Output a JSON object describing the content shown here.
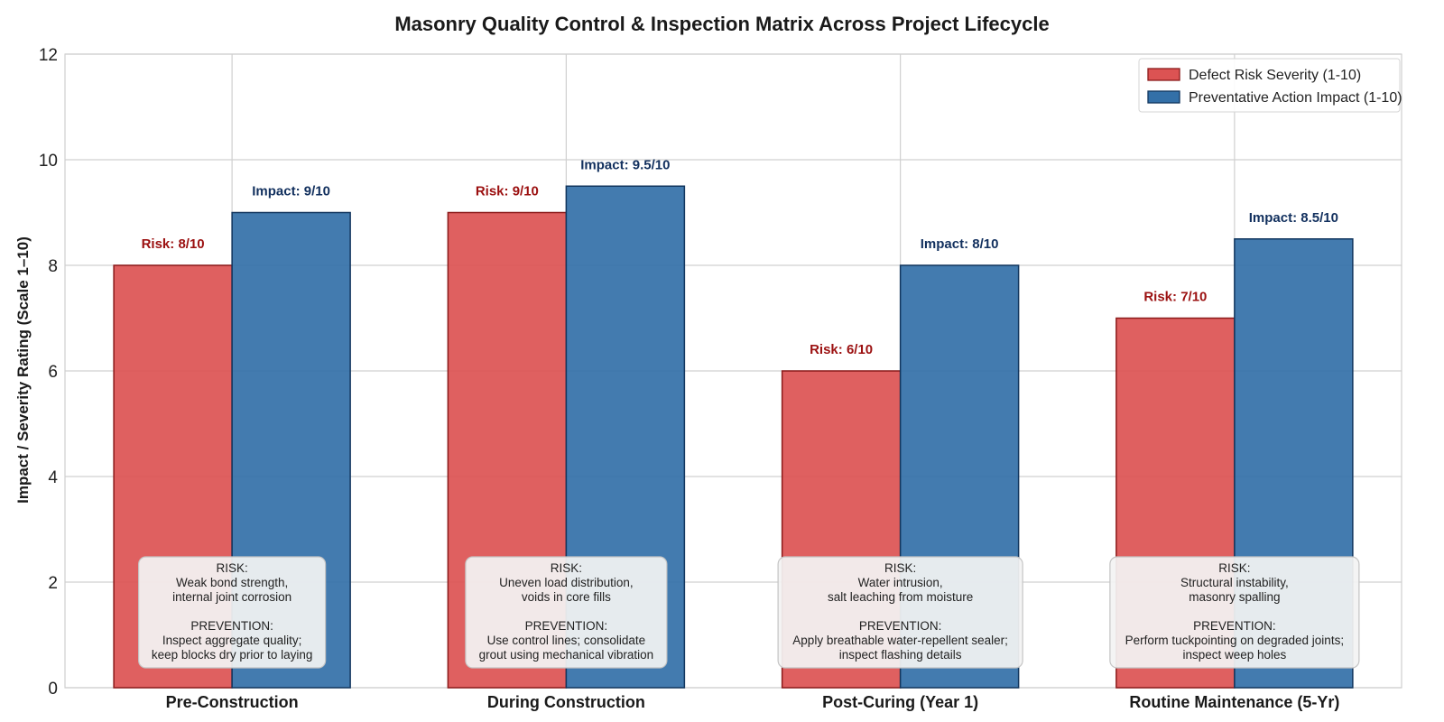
{
  "colors": {
    "risk": "#dc5353",
    "risk_edge": "#8b1a1a",
    "impact": "#3370a8",
    "impact_edge": "#12365e",
    "risk_label": "#9b1010",
    "impact_label": "#12305e"
  },
  "chart_data": {
    "type": "bar",
    "title": "Masonry Quality Control & Inspection Matrix Across Project Lifecycle",
    "xlabel": "",
    "ylabel": "Impact / Severity Rating (Scale 1–10)",
    "ylim": [
      0,
      12
    ],
    "yticks": [
      0,
      2,
      4,
      6,
      8,
      10,
      12
    ],
    "grid": true,
    "legend_position": "top-right",
    "categories": [
      "Pre-Construction",
      "During Construction",
      "Post-Curing (Year 1)",
      "Routine Maintenance (5-Yr)"
    ],
    "series": [
      {
        "name": "Defect Risk Severity (1-10)",
        "values": [
          8,
          9,
          6,
          7
        ],
        "labels": [
          "Risk: 8/10",
          "Risk: 9/10",
          "Risk: 6/10",
          "Risk: 7/10"
        ]
      },
      {
        "name": "Preventative Action Impact (1-10)",
        "values": [
          9,
          9.5,
          8,
          8.5
        ],
        "labels": [
          "Impact: 9/10",
          "Impact: 9.5/10",
          "Impact: 8/10",
          "Impact: 8.5/10"
        ]
      }
    ],
    "annotations": [
      {
        "lines": [
          "RISK:",
          "Weak bond strength,",
          "internal joint corrosion",
          "",
          "PREVENTION:",
          "Inspect aggregate quality;",
          "keep blocks dry prior to laying"
        ]
      },
      {
        "lines": [
          "RISK:",
          "Uneven load distribution,",
          "voids in core fills",
          "",
          "PREVENTION:",
          "Use control lines; consolidate",
          "grout using mechanical vibration"
        ]
      },
      {
        "lines": [
          "RISK:",
          "Water intrusion,",
          "salt leaching from moisture",
          "",
          "PREVENTION:",
          "Apply breathable water-repellent sealer;",
          "inspect flashing details"
        ]
      },
      {
        "lines": [
          "RISK:",
          "Structural instability,",
          "masonry spalling",
          "",
          "PREVENTION:",
          "Perform tuckpointing on degraded joints;",
          "inspect weep holes"
        ]
      }
    ]
  }
}
